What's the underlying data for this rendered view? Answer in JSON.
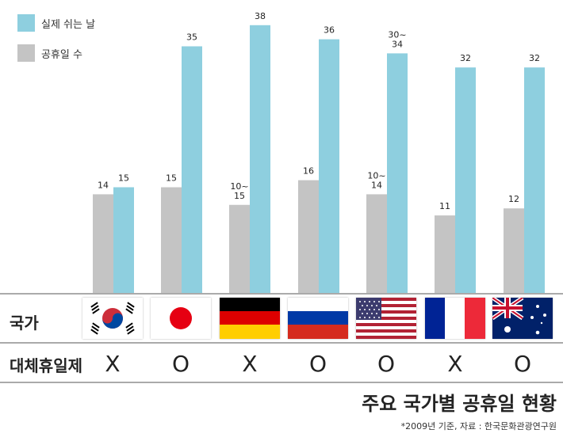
{
  "legend": {
    "actual_label": "실제 쉬는 날",
    "holiday_label": "공휴일 수",
    "actual_color": "#8ecfdf",
    "holiday_color": "#c4c4c4"
  },
  "chart_data": {
    "type": "bar",
    "categories": [
      "대한민국",
      "일본",
      "독일",
      "러시아",
      "미국",
      "프랑스",
      "호주"
    ],
    "series": [
      {
        "name": "공휴일 수",
        "color": "#c4c4c4",
        "values": [
          14,
          15,
          12.5,
          16,
          14,
          11,
          12
        ],
        "labels": [
          "14",
          "15",
          "10~\n15",
          "16",
          "10~\n14",
          "11",
          "12"
        ]
      },
      {
        "name": "실제 쉬는 날",
        "color": "#8ecfdf",
        "values": [
          15,
          35,
          38,
          36,
          34,
          32,
          32
        ],
        "labels": [
          "15",
          "35",
          "38",
          "36",
          "30~\n34",
          "32",
          "32"
        ]
      }
    ],
    "ylim": [
      0,
      40
    ],
    "grid": false,
    "legend_position": "top-left"
  },
  "rows": {
    "country_label": "국가",
    "substitute_label": "대체휴일제",
    "flags": [
      "korea-flag",
      "japan-flag",
      "germany-flag",
      "russia-flag",
      "usa-flag",
      "france-flag",
      "australia-flag"
    ],
    "substitute_marks": [
      "X",
      "O",
      "X",
      "O",
      "O",
      "X",
      "O"
    ]
  },
  "footer": {
    "title": "주요 국가별 공휴일 현황",
    "source": "*2009년 기준, 자료 : 한국문화관광연구원"
  }
}
